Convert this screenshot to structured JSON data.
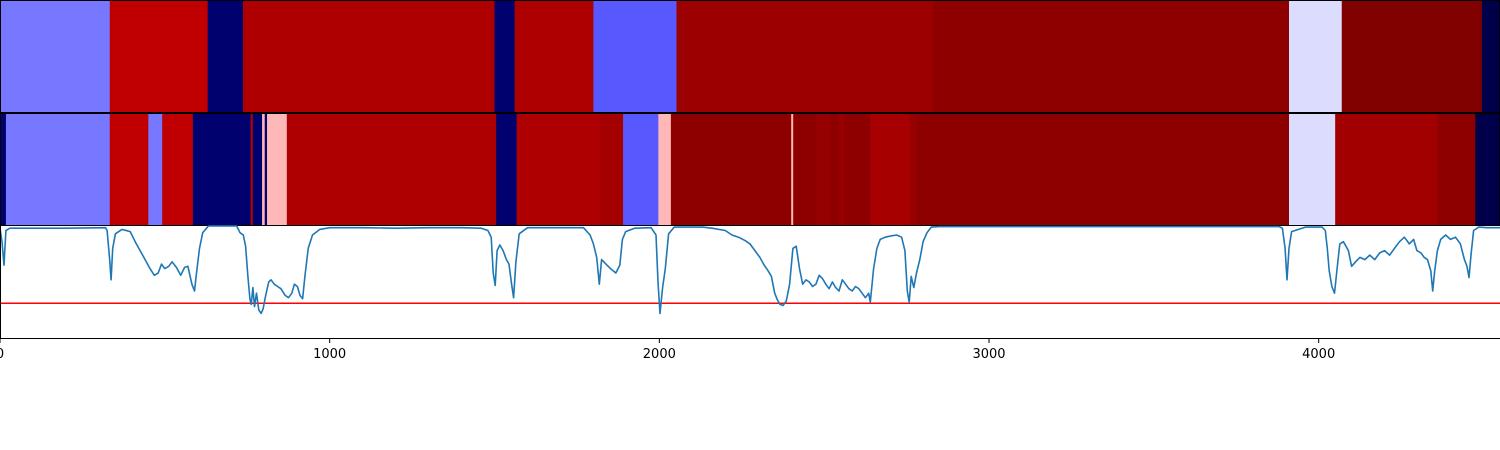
{
  "chart_data": {
    "type": "heatmap",
    "xlim": [
      0,
      4550
    ],
    "ticks": [
      0,
      1000,
      2000,
      3000,
      4000
    ],
    "tick_labels": [
      "0",
      "1000",
      "2000",
      "3000",
      "4000"
    ],
    "panels": [
      {
        "name": "segmentation-top",
        "segments": [
          {
            "start": 0,
            "end": 333,
            "color": "#7777ff"
          },
          {
            "start": 333,
            "end": 630,
            "color": "#c00000"
          },
          {
            "start": 630,
            "end": 737,
            "color": "#00006e"
          },
          {
            "start": 737,
            "end": 1500,
            "color": "#ae0000"
          },
          {
            "start": 1500,
            "end": 1561,
            "color": "#00006e"
          },
          {
            "start": 1561,
            "end": 1800,
            "color": "#ae0000"
          },
          {
            "start": 1800,
            "end": 2052,
            "color": "#5858ff"
          },
          {
            "start": 2052,
            "end": 2830,
            "color": "#9c0000"
          },
          {
            "start": 2830,
            "end": 3910,
            "color": "#8e0000"
          },
          {
            "start": 3910,
            "end": 4070,
            "color": "#dcdcff"
          },
          {
            "start": 4070,
            "end": 4495,
            "color": "#810000"
          },
          {
            "start": 4495,
            "end": 4550,
            "color": "#00004a"
          }
        ]
      },
      {
        "name": "segmentation-bottom",
        "segments": [
          {
            "start": 0,
            "end": 18,
            "color": "#00006e"
          },
          {
            "start": 18,
            "end": 333,
            "color": "#7777ff"
          },
          {
            "start": 333,
            "end": 450,
            "color": "#c00000"
          },
          {
            "start": 450,
            "end": 492,
            "color": "#7777ff"
          },
          {
            "start": 492,
            "end": 585,
            "color": "#c00000"
          },
          {
            "start": 585,
            "end": 760,
            "color": "#00006e"
          },
          {
            "start": 760,
            "end": 767,
            "color": "#ae0000"
          },
          {
            "start": 767,
            "end": 795,
            "color": "#00006e"
          },
          {
            "start": 795,
            "end": 803,
            "color": "#ffb8b8"
          },
          {
            "start": 803,
            "end": 810,
            "color": "#00006e"
          },
          {
            "start": 810,
            "end": 870,
            "color": "#ffb8b8"
          },
          {
            "start": 870,
            "end": 1505,
            "color": "#ae0000"
          },
          {
            "start": 1505,
            "end": 1567,
            "color": "#00006e"
          },
          {
            "start": 1567,
            "end": 1820,
            "color": "#ae0000"
          },
          {
            "start": 1820,
            "end": 1890,
            "color": "#a40000"
          },
          {
            "start": 1890,
            "end": 1997,
            "color": "#5858ff"
          },
          {
            "start": 1997,
            "end": 2035,
            "color": "#ffb8b8"
          },
          {
            "start": 2035,
            "end": 2400,
            "color": "#8e0000"
          },
          {
            "start": 2400,
            "end": 2406,
            "color": "#ffb8b8"
          },
          {
            "start": 2406,
            "end": 2475,
            "color": "#8e0000"
          },
          {
            "start": 2475,
            "end": 2520,
            "color": "#960000"
          },
          {
            "start": 2520,
            "end": 2545,
            "color": "#8e0000"
          },
          {
            "start": 2545,
            "end": 2560,
            "color": "#9a0000"
          },
          {
            "start": 2560,
            "end": 2640,
            "color": "#8e0000"
          },
          {
            "start": 2640,
            "end": 2760,
            "color": "#a60000"
          },
          {
            "start": 2760,
            "end": 2780,
            "color": "#960000"
          },
          {
            "start": 2780,
            "end": 3910,
            "color": "#8e0000"
          },
          {
            "start": 3910,
            "end": 4050,
            "color": "#dcdcff"
          },
          {
            "start": 4050,
            "end": 4360,
            "color": "#a20000"
          },
          {
            "start": 4360,
            "end": 4475,
            "color": "#8e0000"
          },
          {
            "start": 4475,
            "end": 4550,
            "color": "#00004a"
          }
        ]
      }
    ],
    "line": {
      "color": "#1f77b4",
      "ylim": [
        0,
        1
      ],
      "threshold": {
        "value": 0.31,
        "color": "#ff0000"
      },
      "points": [
        [
          0,
          0.98
        ],
        [
          6,
          0.86
        ],
        [
          12,
          0.65
        ],
        [
          18,
          0.96
        ],
        [
          30,
          0.98
        ],
        [
          200,
          0.98
        ],
        [
          320,
          0.985
        ],
        [
          325,
          0.96
        ],
        [
          332,
          0.72
        ],
        [
          337,
          0.52
        ],
        [
          342,
          0.8
        ],
        [
          350,
          0.93
        ],
        [
          370,
          0.97
        ],
        [
          395,
          0.95
        ],
        [
          410,
          0.86
        ],
        [
          425,
          0.78
        ],
        [
          440,
          0.7
        ],
        [
          455,
          0.62
        ],
        [
          468,
          0.56
        ],
        [
          480,
          0.58
        ],
        [
          490,
          0.66
        ],
        [
          500,
          0.62
        ],
        [
          512,
          0.64
        ],
        [
          522,
          0.68
        ],
        [
          535,
          0.63
        ],
        [
          548,
          0.56
        ],
        [
          560,
          0.63
        ],
        [
          570,
          0.64
        ],
        [
          582,
          0.48
        ],
        [
          590,
          0.42
        ],
        [
          596,
          0.58
        ],
        [
          605,
          0.8
        ],
        [
          615,
          0.94
        ],
        [
          632,
          1.0
        ],
        [
          718,
          1.0
        ],
        [
          728,
          0.94
        ],
        [
          738,
          0.92
        ],
        [
          745,
          0.82
        ],
        [
          752,
          0.55
        ],
        [
          758,
          0.35
        ],
        [
          762,
          0.3
        ],
        [
          767,
          0.45
        ],
        [
          772,
          0.28
        ],
        [
          778,
          0.4
        ],
        [
          785,
          0.25
        ],
        [
          792,
          0.22
        ],
        [
          798,
          0.26
        ],
        [
          806,
          0.38
        ],
        [
          815,
          0.5
        ],
        [
          822,
          0.52
        ],
        [
          832,
          0.48
        ],
        [
          842,
          0.46
        ],
        [
          852,
          0.44
        ],
        [
          865,
          0.38
        ],
        [
          875,
          0.36
        ],
        [
          885,
          0.4
        ],
        [
          893,
          0.48
        ],
        [
          902,
          0.46
        ],
        [
          910,
          0.38
        ],
        [
          918,
          0.35
        ],
        [
          925,
          0.55
        ],
        [
          935,
          0.8
        ],
        [
          948,
          0.92
        ],
        [
          970,
          0.97
        ],
        [
          1000,
          0.985
        ],
        [
          1100,
          0.985
        ],
        [
          1200,
          0.98
        ],
        [
          1300,
          0.985
        ],
        [
          1400,
          0.985
        ],
        [
          1460,
          0.98
        ],
        [
          1480,
          0.96
        ],
        [
          1490,
          0.9
        ],
        [
          1496,
          0.58
        ],
        [
          1502,
          0.47
        ],
        [
          1508,
          0.78
        ],
        [
          1516,
          0.83
        ],
        [
          1526,
          0.78
        ],
        [
          1536,
          0.7
        ],
        [
          1544,
          0.66
        ],
        [
          1552,
          0.48
        ],
        [
          1558,
          0.36
        ],
        [
          1565,
          0.68
        ],
        [
          1575,
          0.93
        ],
        [
          1600,
          0.985
        ],
        [
          1770,
          0.985
        ],
        [
          1790,
          0.92
        ],
        [
          1800,
          0.84
        ],
        [
          1810,
          0.72
        ],
        [
          1818,
          0.48
        ],
        [
          1825,
          0.7
        ],
        [
          1838,
          0.66
        ],
        [
          1852,
          0.62
        ],
        [
          1868,
          0.58
        ],
        [
          1880,
          0.65
        ],
        [
          1888,
          0.88
        ],
        [
          1898,
          0.95
        ],
        [
          1925,
          0.98
        ],
        [
          1975,
          0.985
        ],
        [
          1990,
          0.92
        ],
        [
          1996,
          0.5
        ],
        [
          2002,
          0.22
        ],
        [
          2010,
          0.45
        ],
        [
          2018,
          0.62
        ],
        [
          2028,
          0.93
        ],
        [
          2045,
          0.99
        ],
        [
          2100,
          0.99
        ],
        [
          2130,
          0.99
        ],
        [
          2160,
          0.98
        ],
        [
          2180,
          0.97
        ],
        [
          2200,
          0.96
        ],
        [
          2220,
          0.92
        ],
        [
          2240,
          0.9
        ],
        [
          2260,
          0.87
        ],
        [
          2275,
          0.84
        ],
        [
          2290,
          0.78
        ],
        [
          2305,
          0.72
        ],
        [
          2318,
          0.65
        ],
        [
          2330,
          0.6
        ],
        [
          2340,
          0.55
        ],
        [
          2350,
          0.4
        ],
        [
          2358,
          0.34
        ],
        [
          2366,
          0.3
        ],
        [
          2375,
          0.29
        ],
        [
          2385,
          0.33
        ],
        [
          2395,
          0.48
        ],
        [
          2405,
          0.8
        ],
        [
          2415,
          0.82
        ],
        [
          2425,
          0.62
        ],
        [
          2435,
          0.48
        ],
        [
          2445,
          0.52
        ],
        [
          2455,
          0.5
        ],
        [
          2465,
          0.46
        ],
        [
          2475,
          0.48
        ],
        [
          2485,
          0.56
        ],
        [
          2495,
          0.53
        ],
        [
          2505,
          0.48
        ],
        [
          2515,
          0.44
        ],
        [
          2525,
          0.5
        ],
        [
          2535,
          0.45
        ],
        [
          2545,
          0.42
        ],
        [
          2555,
          0.52
        ],
        [
          2565,
          0.48
        ],
        [
          2575,
          0.44
        ],
        [
          2585,
          0.42
        ],
        [
          2595,
          0.46
        ],
        [
          2605,
          0.44
        ],
        [
          2615,
          0.4
        ],
        [
          2625,
          0.36
        ],
        [
          2635,
          0.4
        ],
        [
          2640,
          0.32
        ],
        [
          2650,
          0.62
        ],
        [
          2660,
          0.8
        ],
        [
          2670,
          0.88
        ],
        [
          2685,
          0.9
        ],
        [
          2700,
          0.91
        ],
        [
          2720,
          0.92
        ],
        [
          2735,
          0.9
        ],
        [
          2745,
          0.78
        ],
        [
          2752,
          0.42
        ],
        [
          2758,
          0.32
        ],
        [
          2764,
          0.55
        ],
        [
          2772,
          0.45
        ],
        [
          2780,
          0.58
        ],
        [
          2790,
          0.7
        ],
        [
          2800,
          0.86
        ],
        [
          2812,
          0.94
        ],
        [
          2825,
          0.99
        ],
        [
          2850,
          0.995
        ],
        [
          3000,
          0.995
        ],
        [
          3500,
          0.995
        ],
        [
          3880,
          0.995
        ],
        [
          3890,
          0.98
        ],
        [
          3898,
          0.8
        ],
        [
          3904,
          0.52
        ],
        [
          3910,
          0.8
        ],
        [
          3918,
          0.95
        ],
        [
          3960,
          0.99
        ],
        [
          4010,
          0.99
        ],
        [
          4020,
          0.96
        ],
        [
          4026,
          0.8
        ],
        [
          4032,
          0.6
        ],
        [
          4040,
          0.46
        ],
        [
          4048,
          0.4
        ],
        [
          4056,
          0.62
        ],
        [
          4064,
          0.84
        ],
        [
          4075,
          0.86
        ],
        [
          4090,
          0.78
        ],
        [
          4100,
          0.64
        ],
        [
          4112,
          0.68
        ],
        [
          4125,
          0.72
        ],
        [
          4140,
          0.7
        ],
        [
          4155,
          0.74
        ],
        [
          4170,
          0.7
        ],
        [
          4185,
          0.76
        ],
        [
          4200,
          0.78
        ],
        [
          4215,
          0.74
        ],
        [
          4230,
          0.8
        ],
        [
          4245,
          0.86
        ],
        [
          4260,
          0.9
        ],
        [
          4275,
          0.84
        ],
        [
          4288,
          0.88
        ],
        [
          4298,
          0.78
        ],
        [
          4310,
          0.76
        ],
        [
          4320,
          0.72
        ],
        [
          4330,
          0.7
        ],
        [
          4340,
          0.6
        ],
        [
          4346,
          0.42
        ],
        [
          4352,
          0.6
        ],
        [
          4360,
          0.78
        ],
        [
          4370,
          0.88
        ],
        [
          4385,
          0.92
        ],
        [
          4400,
          0.88
        ],
        [
          4415,
          0.9
        ],
        [
          4430,
          0.84
        ],
        [
          4442,
          0.7
        ],
        [
          4450,
          0.64
        ],
        [
          4456,
          0.54
        ],
        [
          4462,
          0.74
        ],
        [
          4470,
          0.96
        ],
        [
          4485,
          0.99
        ],
        [
          4510,
          0.985
        ],
        [
          4530,
          0.985
        ],
        [
          4550,
          0.985
        ]
      ]
    }
  }
}
